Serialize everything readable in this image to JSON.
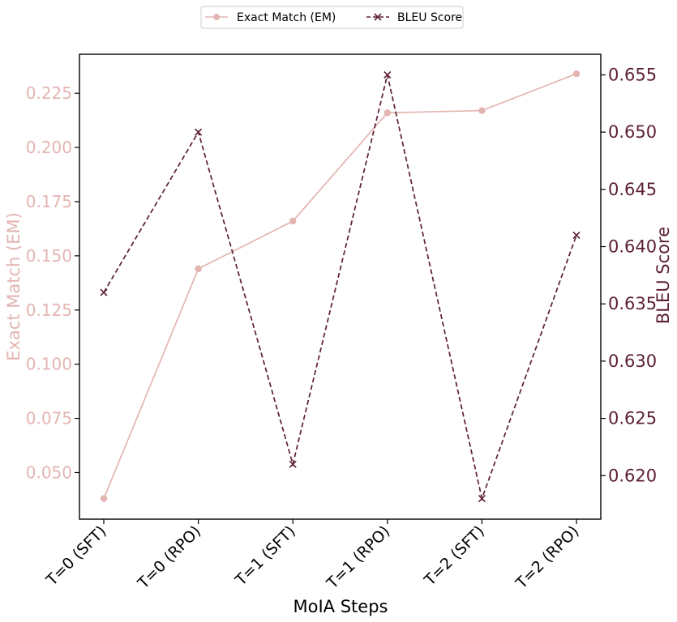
{
  "chart_data": {
    "type": "line",
    "categories": [
      "T=0 (SFT)",
      "T=0 (RPO)",
      "T=1 (SFT)",
      "T=1 (RPO)",
      "T=2 (SFT)",
      "T=2 (RPO)"
    ],
    "xlabel": "MoIA Steps",
    "y_left": {
      "label": "Exact Match (EM)",
      "ticks": [
        0.05,
        0.075,
        0.1,
        0.125,
        0.15,
        0.175,
        0.2,
        0.225
      ],
      "tick_labels": [
        "0.050",
        "0.075",
        "0.100",
        "0.125",
        "0.150",
        "0.175",
        "0.200",
        "0.225"
      ],
      "ylim": [
        0.0285,
        0.243
      ],
      "color": "#e3b5b1"
    },
    "y_right": {
      "label": "BLEU Score",
      "ticks": [
        0.62,
        0.625,
        0.63,
        0.635,
        0.64,
        0.645,
        0.65,
        0.655
      ],
      "tick_labels": [
        "0.620",
        "0.625",
        "0.630",
        "0.635",
        "0.640",
        "0.645",
        "0.650",
        "0.655"
      ],
      "ylim": [
        0.6162,
        0.6568
      ],
      "color": "#5c1f35"
    },
    "series": [
      {
        "name": "Exact Match (EM)",
        "axis": "left",
        "values": [
          0.038,
          0.144,
          0.166,
          0.216,
          0.217,
          0.234
        ],
        "color": "#e3b5b1",
        "marker": "circle",
        "linestyle": "solid"
      },
      {
        "name": "BLEU Score",
        "axis": "right",
        "values": [
          0.636,
          0.65,
          0.621,
          0.655,
          0.618,
          0.641
        ],
        "color": "#5c1f35",
        "marker": "x",
        "linestyle": "dashed"
      }
    ],
    "legend": {
      "placement": "top-center",
      "columns": 2
    },
    "grid": false
  }
}
